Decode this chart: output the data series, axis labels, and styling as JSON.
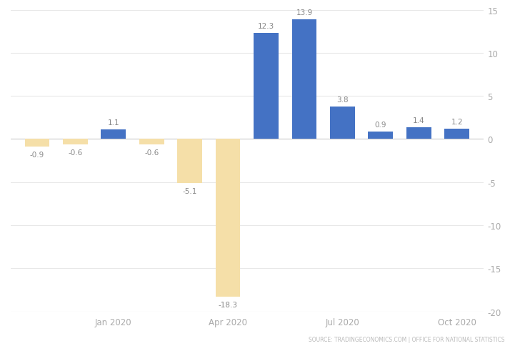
{
  "x_positions": [
    0,
    1,
    2,
    3,
    4,
    5,
    6,
    7,
    8,
    9,
    10,
    11
  ],
  "values": [
    -0.9,
    -0.6,
    1.1,
    -0.6,
    -5.1,
    -18.3,
    12.3,
    13.9,
    3.8,
    0.9,
    1.4,
    1.2
  ],
  "bar_colors": [
    "#f5dfa8",
    "#f5dfa8",
    "#4472c4",
    "#f5dfa8",
    "#f5dfa8",
    "#f5dfa8",
    "#4472c4",
    "#4472c4",
    "#4472c4",
    "#4472c4",
    "#4472c4",
    "#4472c4"
  ],
  "ylim": [
    -20,
    15
  ],
  "yticks": [
    -20,
    -15,
    -10,
    -5,
    0,
    5,
    10,
    15
  ],
  "xtick_positions": [
    2,
    5,
    8,
    11
  ],
  "xtick_labels": [
    "Jan 2020",
    "Apr 2020",
    "Jul 2020",
    "Oct 2020"
  ],
  "source_text": "SOURCE: TRADINGECONOMICS.COM | OFFICE FOR NATIONAL STATISTICS",
  "background_color": "#ffffff",
  "grid_color": "#e8e8e8",
  "bar_width": 0.65,
  "value_label_color": "#888888",
  "tick_label_color": "#aaaaaa",
  "right_ytick_color": "#aaaaaa"
}
